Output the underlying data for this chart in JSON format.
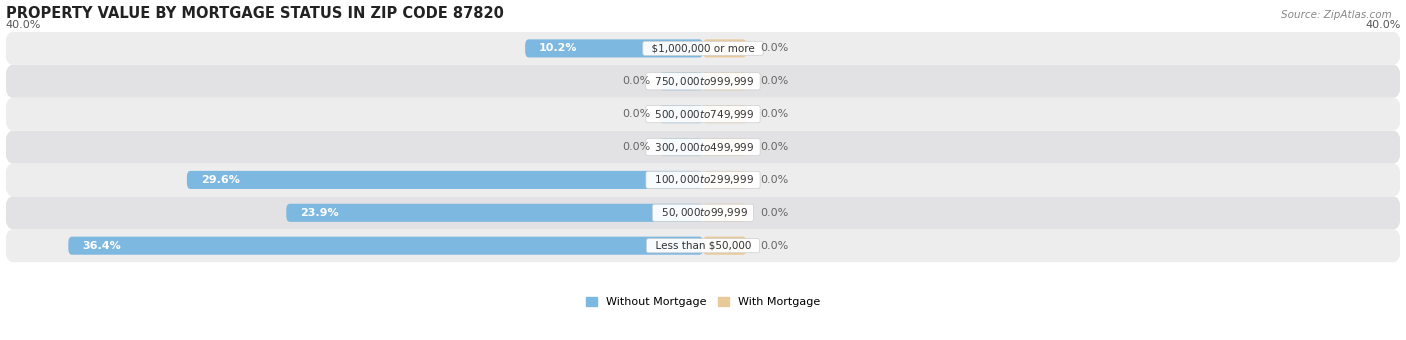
{
  "title": "PROPERTY VALUE BY MORTGAGE STATUS IN ZIP CODE 87820",
  "source": "Source: ZipAtlas.com",
  "categories": [
    "Less than $50,000",
    "$50,000 to $99,999",
    "$100,000 to $299,999",
    "$300,000 to $499,999",
    "$500,000 to $749,999",
    "$750,000 to $999,999",
    "$1,000,000 or more"
  ],
  "without_mortgage": [
    36.4,
    23.9,
    29.6,
    0.0,
    0.0,
    0.0,
    10.2
  ],
  "with_mortgage": [
    0.0,
    0.0,
    0.0,
    0.0,
    0.0,
    0.0,
    0.0
  ],
  "color_without": "#7db8e0",
  "color_with": "#e8c99a",
  "axis_limit": 40.0,
  "axis_label_left": "40.0%",
  "axis_label_right": "40.0%",
  "bar_height": 0.55,
  "row_bg_light": "#ededee",
  "row_bg_dark": "#e2e2e4",
  "title_fontsize": 10.5,
  "source_fontsize": 7.5,
  "value_fontsize": 8,
  "category_fontsize": 7.5,
  "legend_fontsize": 8,
  "stub_size": 2.5
}
